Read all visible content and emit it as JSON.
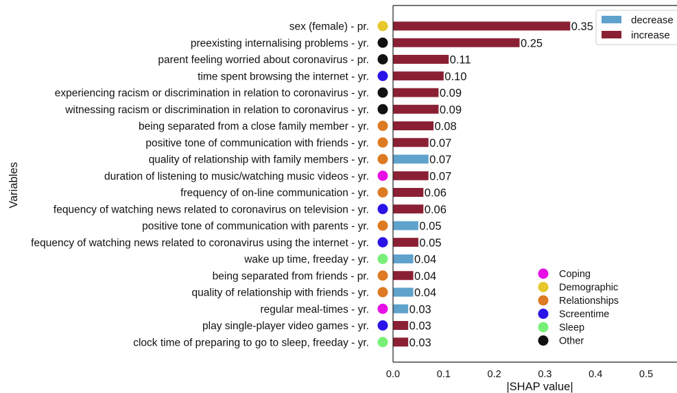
{
  "chart_data": {
    "type": "bar",
    "orientation": "horizontal",
    "title": "",
    "xlabel": "|SHAP value|",
    "ylabel": "Variables",
    "xlim": [
      0,
      0.56
    ],
    "xticks": [
      "0.0",
      "0.1",
      "0.2",
      "0.3",
      "0.4",
      "0.5"
    ],
    "categories": [
      "sex (female) - pr.",
      "preexisting internalising problems - yr.",
      "parent feeling worried about coronavirus - pr.",
      "time spent browsing the internet - yr.",
      "experiencing racism or discrimination in relation to coronavirus - yr.",
      "witnessing racism or discrimination in relation to coronavirus - yr.",
      "being separated from a close family member - yr.",
      "positive tone of communication with friends - yr.",
      "quality of relationship with family members - yr.",
      "duration of listening to music/watching music videos - yr.",
      "frequency of  on-line communication - yr.",
      "fequency of watching news related to coronavirus on television - yr.",
      "positive tone of communication with parents - yr.",
      "fequency of watching news related to coronavirus using the internet - yr.",
      "wake up time, freeday - yr.",
      "being separated from friends - pr.",
      "quality of relationship with friends - yr.",
      "regular meal-times - yr.",
      "play single-player video games - yr.",
      "clock time of preparing to go to sleep, freeday - yr."
    ],
    "values": [
      0.35,
      0.25,
      0.11,
      0.1,
      0.09,
      0.09,
      0.08,
      0.07,
      0.07,
      0.07,
      0.06,
      0.06,
      0.05,
      0.05,
      0.04,
      0.04,
      0.04,
      0.03,
      0.03,
      0.03
    ],
    "value_labels": [
      "0.35",
      "0.25",
      "0.11",
      "0.10",
      "0.09",
      "0.09",
      "0.08",
      "0.07",
      "0.07",
      "0.07",
      "0.06",
      "0.06",
      "0.05",
      "0.05",
      "0.04",
      "0.04",
      "0.04",
      "0.03",
      "0.03",
      "0.03"
    ],
    "direction": [
      "increase",
      "increase",
      "increase",
      "increase",
      "increase",
      "increase",
      "increase",
      "increase",
      "decrease",
      "increase",
      "increase",
      "increase",
      "decrease",
      "increase",
      "decrease",
      "increase",
      "decrease",
      "decrease",
      "increase",
      "increase"
    ],
    "group": [
      "Demographic",
      "Other",
      "Other",
      "Screentime",
      "Other",
      "Other",
      "Relationships",
      "Relationships",
      "Relationships",
      "Coping",
      "Relationships",
      "Screentime",
      "Relationships",
      "Screentime",
      "Sleep",
      "Relationships",
      "Relationships",
      "Coping",
      "Screentime",
      "Sleep"
    ],
    "series_legend": {
      "placement": "top-right",
      "entries": [
        {
          "name": "decrease",
          "color": "#5fa2cc"
        },
        {
          "name": "increase",
          "color": "#8b2035"
        }
      ]
    },
    "group_legend": {
      "placement": "bottom-right",
      "entries": [
        {
          "name": "Coping",
          "color": "#e60fe6"
        },
        {
          "name": "Demographic",
          "color": "#e6c82a"
        },
        {
          "name": "Relationships",
          "color": "#dd7a22"
        },
        {
          "name": "Screentime",
          "color": "#2a14e8"
        },
        {
          "name": "Sleep",
          "color": "#78f078"
        },
        {
          "name": "Other",
          "color": "#111111"
        }
      ]
    },
    "grid": false
  }
}
